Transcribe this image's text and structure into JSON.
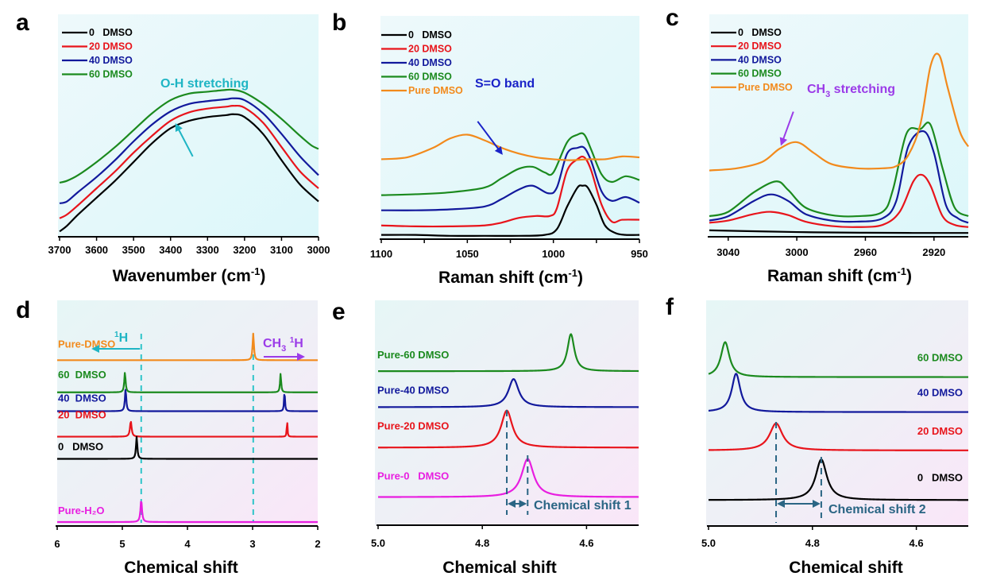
{
  "chart_data": [
    {
      "id": "a",
      "type": "line",
      "panel_letter": "a",
      "xlabel": "Wavenumber (cm",
      "xlabel_sup": "-1",
      "xlabel_end": ")",
      "xlim": [
        3700,
        3000
      ],
      "ylim": [
        0,
        1
      ],
      "xticks": [
        3700,
        3600,
        3500,
        3400,
        3300,
        3200,
        3100,
        3000
      ],
      "xtick_labels": [
        "3700",
        "3600",
        "3500",
        "3400",
        "3300",
        "3200",
        "3100",
        "3000"
      ],
      "legend": {
        "placement": "top-left"
      },
      "annotation": {
        "text": "O-H stretching",
        "color": "#1fb5c4",
        "arrow": {
          "from": [
            3340,
            0.42
          ],
          "to": [
            3385,
            0.59
          ]
        }
      },
      "series": [
        {
          "name": "0   DMSO",
          "color": "#000000",
          "x": [
            3700,
            3680,
            3650,
            3600,
            3550,
            3500,
            3450,
            3400,
            3350,
            3300,
            3250,
            3230,
            3200,
            3150,
            3100,
            3050,
            3000
          ],
          "y": [
            0.02,
            0.05,
            0.11,
            0.2,
            0.29,
            0.39,
            0.49,
            0.57,
            0.61,
            0.63,
            0.64,
            0.645,
            0.63,
            0.54,
            0.4,
            0.27,
            0.18
          ]
        },
        {
          "name": "20 DMSO",
          "color": "#e8141b",
          "x": [
            3700,
            3680,
            3650,
            3600,
            3550,
            3500,
            3450,
            3400,
            3350,
            3300,
            3250,
            3230,
            3200,
            3150,
            3100,
            3050,
            3000
          ],
          "y": [
            0.09,
            0.11,
            0.16,
            0.25,
            0.34,
            0.44,
            0.53,
            0.61,
            0.655,
            0.675,
            0.685,
            0.69,
            0.68,
            0.6,
            0.47,
            0.34,
            0.25
          ]
        },
        {
          "name": "40 DMSO",
          "color": "#12199c",
          "x": [
            3700,
            3680,
            3650,
            3600,
            3550,
            3500,
            3450,
            3400,
            3350,
            3300,
            3250,
            3230,
            3200,
            3150,
            3100,
            3050,
            3000
          ],
          "y": [
            0.17,
            0.18,
            0.23,
            0.31,
            0.4,
            0.5,
            0.59,
            0.66,
            0.7,
            0.715,
            0.725,
            0.73,
            0.72,
            0.65,
            0.54,
            0.42,
            0.32
          ]
        },
        {
          "name": "60 DMSO",
          "color": "#1b8a1e",
          "x": [
            3700,
            3680,
            3650,
            3600,
            3550,
            3500,
            3450,
            3400,
            3350,
            3300,
            3250,
            3230,
            3200,
            3150,
            3100,
            3050,
            3020,
            3000
          ],
          "y": [
            0.28,
            0.29,
            0.32,
            0.39,
            0.47,
            0.56,
            0.65,
            0.72,
            0.755,
            0.765,
            0.775,
            0.775,
            0.76,
            0.7,
            0.62,
            0.53,
            0.48,
            0.46
          ]
        }
      ]
    },
    {
      "id": "b",
      "type": "line",
      "panel_letter": "b",
      "xlabel": "Raman shift (cm",
      "xlabel_sup": "-1",
      "xlabel_end": ")",
      "xlim": [
        1100,
        950
      ],
      "ylim": [
        0,
        1
      ],
      "xticks": [
        1100,
        1075,
        1050,
        1025,
        1000,
        975,
        950
      ],
      "xtick_labels": [
        "1100",
        "",
        "1050",
        "",
        "1000",
        "",
        "950"
      ],
      "legend": {
        "placement": "top-left"
      },
      "annotation": {
        "text": "S=O band",
        "color": "#1a23c8",
        "arrow": {
          "from": [
            1044,
            0.61
          ],
          "to": [
            1030,
            0.44
          ]
        }
      },
      "series": [
        {
          "name": "0   DMSO",
          "color": "#000000",
          "x": [
            1100,
            1080,
            1060,
            1040,
            1020,
            1005,
            998,
            992,
            986,
            983,
            980,
            975,
            970,
            964,
            958,
            950
          ],
          "y": [
            0.01,
            0.01,
            0.005,
            0.005,
            0.005,
            0.01,
            0.04,
            0.16,
            0.26,
            0.27,
            0.26,
            0.17,
            0.06,
            0.02,
            0.01,
            0.01
          ]
        },
        {
          "name": "20 DMSO",
          "color": "#e8141b",
          "x": [
            1100,
            1080,
            1060,
            1040,
            1030,
            1020,
            1010,
            1002,
            998,
            992,
            986,
            982,
            978,
            972,
            966,
            960,
            950
          ],
          "y": [
            0.06,
            0.055,
            0.055,
            0.06,
            0.075,
            0.1,
            0.11,
            0.11,
            0.15,
            0.35,
            0.41,
            0.42,
            0.35,
            0.17,
            0.08,
            0.09,
            0.09
          ]
        },
        {
          "name": "40 DMSO",
          "color": "#12199c",
          "x": [
            1100,
            1080,
            1060,
            1040,
            1030,
            1020,
            1012,
            1003,
            998,
            992,
            986,
            982,
            978,
            972,
            966,
            958,
            950
          ],
          "y": [
            0.14,
            0.14,
            0.145,
            0.16,
            0.2,
            0.25,
            0.27,
            0.23,
            0.26,
            0.44,
            0.47,
            0.47,
            0.4,
            0.24,
            0.19,
            0.21,
            0.18
          ]
        },
        {
          "name": "60 DMSO",
          "color": "#1b8a1e",
          "x": [
            1100,
            1080,
            1060,
            1040,
            1030,
            1020,
            1012,
            1005,
            1000,
            992,
            986,
            982,
            978,
            972,
            966,
            958,
            950
          ],
          "y": [
            0.22,
            0.225,
            0.235,
            0.26,
            0.31,
            0.36,
            0.37,
            0.34,
            0.34,
            0.5,
            0.54,
            0.54,
            0.46,
            0.33,
            0.29,
            0.32,
            0.3
          ]
        },
        {
          "name": "Pure DMSO",
          "color": "#f28a1c",
          "x": [
            1100,
            1085,
            1070,
            1060,
            1050,
            1040,
            1030,
            1020,
            1010,
            1000,
            990,
            980,
            970,
            960,
            950
          ],
          "y": [
            0.41,
            0.42,
            0.47,
            0.52,
            0.54,
            0.51,
            0.47,
            0.44,
            0.42,
            0.41,
            0.405,
            0.41,
            0.41,
            0.425,
            0.42
          ]
        }
      ]
    },
    {
      "id": "c",
      "type": "line",
      "panel_letter": "c",
      "xlabel": "Raman shift (cm",
      "xlabel_sup": "-1",
      "xlabel_end": ")",
      "xlim": [
        3051,
        2900
      ],
      "ylim": [
        0,
        1
      ],
      "xticks": [
        3040,
        3000,
        2960,
        2920
      ],
      "xtick_labels": [
        "3040",
        "3000",
        "2960",
        "2920"
      ],
      "legend": {
        "placement": "top-left"
      },
      "annotation": {
        "text": "CH",
        "text_sub": "3",
        "text_end": " stretching",
        "color": "#9b3be8",
        "arrow": {
          "from": [
            3002,
            0.56
          ],
          "to": [
            3009,
            0.41
          ]
        }
      },
      "series": [
        {
          "name": "0   DMSO",
          "color": "#000000",
          "x": [
            3051,
            3020,
            2990,
            2960,
            2930,
            2900
          ],
          "y": [
            0.015,
            0.01,
            0.006,
            0.004,
            0.003,
            0.003
          ]
        },
        {
          "name": "20 DMSO",
          "color": "#e8141b",
          "x": [
            3051,
            3040,
            3025,
            3015,
            3005,
            2995,
            2980,
            2965,
            2950,
            2940,
            2932,
            2927,
            2922,
            2915,
            2908,
            2900
          ],
          "y": [
            0.05,
            0.06,
            0.09,
            0.1,
            0.085,
            0.055,
            0.035,
            0.03,
            0.04,
            0.1,
            0.24,
            0.27,
            0.22,
            0.08,
            0.04,
            0.03
          ]
        },
        {
          "name": "40 DMSO",
          "color": "#12199c",
          "x": [
            3051,
            3040,
            3025,
            3015,
            3005,
            2995,
            2980,
            2965,
            2950,
            2942,
            2935,
            2926,
            2920,
            2913,
            2906,
            2900
          ],
          "y": [
            0.06,
            0.08,
            0.15,
            0.18,
            0.15,
            0.09,
            0.06,
            0.055,
            0.07,
            0.15,
            0.4,
            0.47,
            0.37,
            0.13,
            0.07,
            0.05
          ]
        },
        {
          "name": "60 DMSO",
          "color": "#1b8a1e",
          "x": [
            3051,
            3040,
            3025,
            3012,
            3005,
            2995,
            2980,
            2965,
            2950,
            2944,
            2936,
            2928,
            2922,
            2915,
            2908,
            2900
          ],
          "y": [
            0.08,
            0.1,
            0.19,
            0.24,
            0.2,
            0.12,
            0.085,
            0.08,
            0.1,
            0.2,
            0.46,
            0.48,
            0.5,
            0.3,
            0.12,
            0.08
          ]
        },
        {
          "name": "Pure DMSO",
          "color": "#f28a1c",
          "x": [
            3051,
            3035,
            3020,
            3010,
            3000,
            2990,
            2980,
            2965,
            2950,
            2942,
            2935,
            2928,
            2922,
            2917,
            2912,
            2905,
            2900
          ],
          "y": [
            0.29,
            0.3,
            0.33,
            0.39,
            0.42,
            0.37,
            0.32,
            0.3,
            0.3,
            0.31,
            0.36,
            0.5,
            0.77,
            0.82,
            0.67,
            0.47,
            0.4
          ]
        }
      ]
    },
    {
      "id": "d",
      "type": "line",
      "panel_letter": "d",
      "xlabel": "Chemical shift",
      "xlim": [
        6,
        2
      ],
      "ylim": [
        0,
        1
      ],
      "xticks": [
        6,
        5,
        4,
        3,
        2
      ],
      "xtick_labels": [
        "6",
        "5",
        "4",
        "3",
        "2"
      ],
      "reference_lines": [
        {
          "x": 4.71,
          "color": "#2ec4c9"
        },
        {
          "x": 2.99,
          "color": "#2ec4c9"
        }
      ],
      "annotations": [
        {
          "text": "H",
          "sup": "1",
          "color": "#1fb5c4",
          "arrow": {
            "from": 4.73,
            "to": 5.45
          }
        },
        {
          "text": "CH",
          "sub": "3",
          "text2": " H",
          "sup2": "1",
          "color": "#9b3be8",
          "arrow": {
            "from": 2.83,
            "to": 2.22
          }
        }
      ],
      "series": [
        {
          "name": "Pure-DMSO",
          "color": "#f28a1c",
          "baseline": 0.73,
          "peaks": [
            {
              "x": 2.99,
              "h": 0.12,
              "w": 0.012
            }
          ]
        },
        {
          "name": "60  DMSO",
          "color": "#1b8a1e",
          "baseline": 0.585,
          "peaks": [
            {
              "x": 4.96,
              "h": 0.09,
              "w": 0.012
            },
            {
              "x": 2.57,
              "h": 0.085,
              "w": 0.01
            }
          ]
        },
        {
          "name": "40  DMSO",
          "color": "#12199c",
          "baseline": 0.5,
          "peaks": [
            {
              "x": 4.95,
              "h": 0.1,
              "w": 0.012
            },
            {
              "x": 2.51,
              "h": 0.095,
              "w": 0.008
            }
          ]
        },
        {
          "name": "20  DMSO",
          "color": "#e8141b",
          "baseline": 0.385,
          "peaks": [
            {
              "x": 4.87,
              "h": 0.07,
              "w": 0.015
            },
            {
              "x": 2.47,
              "h": 0.08,
              "w": 0.006
            }
          ]
        },
        {
          "name": "0   DMSO",
          "color": "#000000",
          "baseline": 0.285,
          "peaks": [
            {
              "x": 4.78,
              "h": 0.1,
              "w": 0.012
            }
          ]
        },
        {
          "name": "Pure-H₂O",
          "color": "#e81ee0",
          "baseline": 0.0,
          "peaks": [
            {
              "x": 4.71,
              "h": 0.1,
              "w": 0.014
            }
          ]
        }
      ]
    },
    {
      "id": "e",
      "type": "line",
      "panel_letter": "e",
      "xlabel": "Chemical shift",
      "xlim": [
        5.0,
        4.5
      ],
      "ylim": [
        0,
        1
      ],
      "xticks": [
        5.0,
        4.8,
        4.6
      ],
      "xtick_labels": [
        "5.0",
        "4.8",
        "4.6"
      ],
      "annotation": {
        "text": "Chemical shift 1",
        "color": "#2a6584",
        "from": 4.753,
        "to": 4.713
      },
      "series": [
        {
          "name": "Pure-60 DMSO",
          "color": "#1b8a1e",
          "baseline": 0.685,
          "peaks": [
            {
              "x": 4.63,
              "h": 0.165,
              "w": 0.008
            }
          ]
        },
        {
          "name": "Pure-40 DMSO",
          "color": "#12199c",
          "baseline": 0.525,
          "peaks": [
            {
              "x": 4.74,
              "h": 0.125,
              "w": 0.012
            }
          ]
        },
        {
          "name": "Pure-20 DMSO",
          "color": "#e8141b",
          "baseline": 0.345,
          "peaks": [
            {
              "x": 4.753,
              "h": 0.165,
              "w": 0.013
            }
          ]
        },
        {
          "name": "Pure-0   DMSO",
          "color": "#e81ee0",
          "baseline": 0.125,
          "peaks": [
            {
              "x": 4.713,
              "h": 0.17,
              "w": 0.014
            }
          ]
        }
      ]
    },
    {
      "id": "f",
      "type": "line",
      "panel_letter": "f",
      "xlabel": "Chemical shift",
      "xlim": [
        5.0,
        4.5
      ],
      "ylim": [
        0,
        1
      ],
      "xticks": [
        5.0,
        4.8,
        4.6
      ],
      "xtick_labels": [
        "5.0",
        "4.8",
        "4.6"
      ],
      "annotation": {
        "text": "Chemical shift 2",
        "color": "#2a6584",
        "from": 4.87,
        "to": 4.783
      },
      "series": [
        {
          "name": "60 DMSO",
          "color": "#1b8a1e",
          "baseline": 0.66,
          "peaks": [
            {
              "x": 4.968,
              "h": 0.155,
              "w": 0.01
            }
          ]
        },
        {
          "name": "40 DMSO",
          "color": "#12199c",
          "baseline": 0.505,
          "peaks": [
            {
              "x": 4.947,
              "h": 0.17,
              "w": 0.01
            }
          ]
        },
        {
          "name": "20 DMSO",
          "color": "#e8141b",
          "baseline": 0.335,
          "peaks": [
            {
              "x": 4.87,
              "h": 0.12,
              "w": 0.015
            }
          ]
        },
        {
          "name": "0   DMSO",
          "color": "#000000",
          "baseline": 0.115,
          "peaks": [
            {
              "x": 4.783,
              "h": 0.18,
              "w": 0.013
            }
          ]
        }
      ]
    }
  ]
}
